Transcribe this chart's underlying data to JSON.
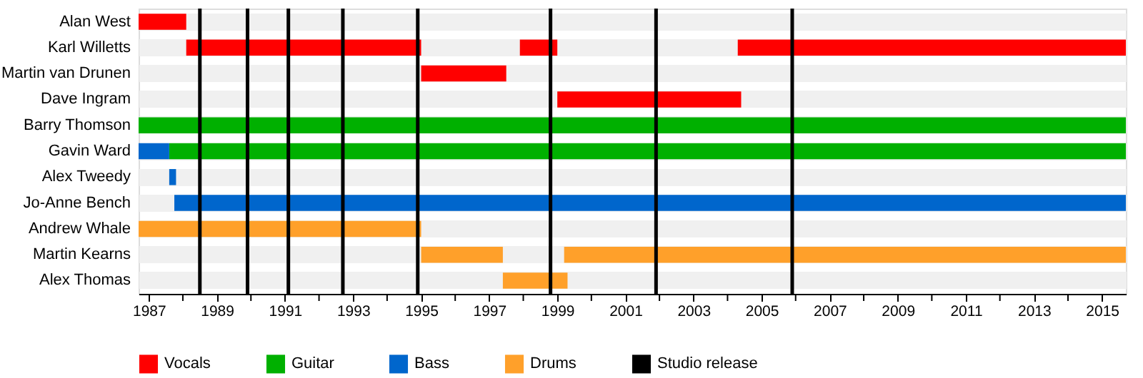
{
  "chart_data": {
    "type": "bar",
    "orientation": "horizontal",
    "categories": [
      "Alan West",
      "Karl Willetts",
      "Martin van Drunen",
      "Dave Ingram",
      "Barry Thomson",
      "Gavin Ward",
      "Alex Tweedy",
      "Jo-Anne Bench",
      "Andrew Whale",
      "Martin Kearns",
      "Alex Thomas"
    ],
    "series": [
      {
        "name": "Vocals",
        "color": "#ff0000",
        "base": [
          1986.7,
          1988.1,
          1995.0,
          1999.0,
          null,
          null,
          null,
          null,
          null,
          null,
          null
        ],
        "values": [
          1.4,
          6.9,
          2.5,
          5.4,
          null,
          null,
          null,
          null,
          null,
          null,
          null
        ]
      },
      {
        "color": "#ff0000",
        "base": [
          null,
          1997.9,
          null,
          null,
          null,
          null,
          null,
          null,
          null,
          null,
          null
        ],
        "values": [
          null,
          1.1,
          null,
          null,
          null,
          null,
          null,
          null,
          null,
          null,
          null
        ]
      },
      {
        "color": "#ff0000",
        "base": [
          null,
          2004.3,
          null,
          null,
          null,
          null,
          null,
          null,
          null,
          null,
          null
        ],
        "values": [
          null,
          11.4,
          null,
          null,
          null,
          null,
          null,
          null,
          null,
          null,
          null
        ]
      },
      {
        "name": "Guitar",
        "color": "#00b000",
        "base": [
          null,
          null,
          null,
          null,
          1986.7,
          1987.6,
          null,
          null,
          null,
          null,
          null
        ],
        "values": [
          null,
          null,
          null,
          null,
          29.0,
          28.1,
          null,
          null,
          null,
          null,
          null
        ]
      },
      {
        "name": "Bass",
        "color": "#0066cc",
        "base": [
          null,
          null,
          null,
          null,
          null,
          1986.7,
          1987.6,
          1987.75,
          null,
          null,
          null
        ],
        "values": [
          null,
          null,
          null,
          null,
          null,
          0.9,
          0.2,
          27.95,
          null,
          null,
          null
        ]
      },
      {
        "name": "Drums",
        "color": "#ffa02a",
        "base": [
          null,
          null,
          null,
          null,
          null,
          null,
          null,
          null,
          1986.7,
          1995.0,
          1997.4
        ],
        "values": [
          null,
          null,
          null,
          null,
          null,
          null,
          null,
          null,
          8.3,
          2.4,
          1.9
        ]
      },
      {
        "color": "#ffa02a",
        "base": [
          null,
          null,
          null,
          null,
          null,
          null,
          null,
          null,
          null,
          1999.2,
          null
        ],
        "values": [
          null,
          null,
          null,
          null,
          null,
          null,
          null,
          null,
          null,
          16.5,
          null
        ]
      }
    ],
    "ref_lines": [
      {
        "axis": "x",
        "value": 1988.5,
        "label": "Studio release",
        "color": "#000000"
      },
      {
        "axis": "x",
        "value": 1989.9,
        "color": "#000000"
      },
      {
        "axis": "x",
        "value": 1991.1,
        "color": "#000000"
      },
      {
        "axis": "x",
        "value": 1992.7,
        "color": "#000000"
      },
      {
        "axis": "x",
        "value": 1994.9,
        "color": "#000000"
      },
      {
        "axis": "x",
        "value": 1998.8,
        "color": "#000000"
      },
      {
        "axis": "x",
        "value": 2001.9,
        "color": "#000000"
      },
      {
        "axis": "x",
        "value": 2005.9,
        "color": "#000000"
      }
    ],
    "xlim": [
      1986.7,
      2015.7
    ],
    "xticks": [
      1987,
      {
        "value": 1988,
        "label": null
      },
      1989,
      {
        "value": 1990,
        "label": null
      },
      1991,
      {
        "value": 1992,
        "label": null
      },
      1993,
      {
        "value": 1994,
        "label": null
      },
      1995,
      {
        "value": 1996,
        "label": null
      },
      1997,
      {
        "value": 1998,
        "label": null
      },
      1999,
      {
        "value": 2000,
        "label": null
      },
      2001,
      {
        "value": 2002,
        "label": null
      },
      2003,
      {
        "value": 2004,
        "label": null
      },
      2005,
      {
        "value": 2006,
        "label": null
      },
      2007,
      {
        "value": 2008,
        "label": null
      },
      2009,
      {
        "value": 2010,
        "label": null
      },
      2011,
      {
        "value": 2012,
        "label": null
      },
      2013,
      {
        "value": 2014,
        "label": null
      },
      2015
    ],
    "grid": "y",
    "legend": "bottom"
  }
}
